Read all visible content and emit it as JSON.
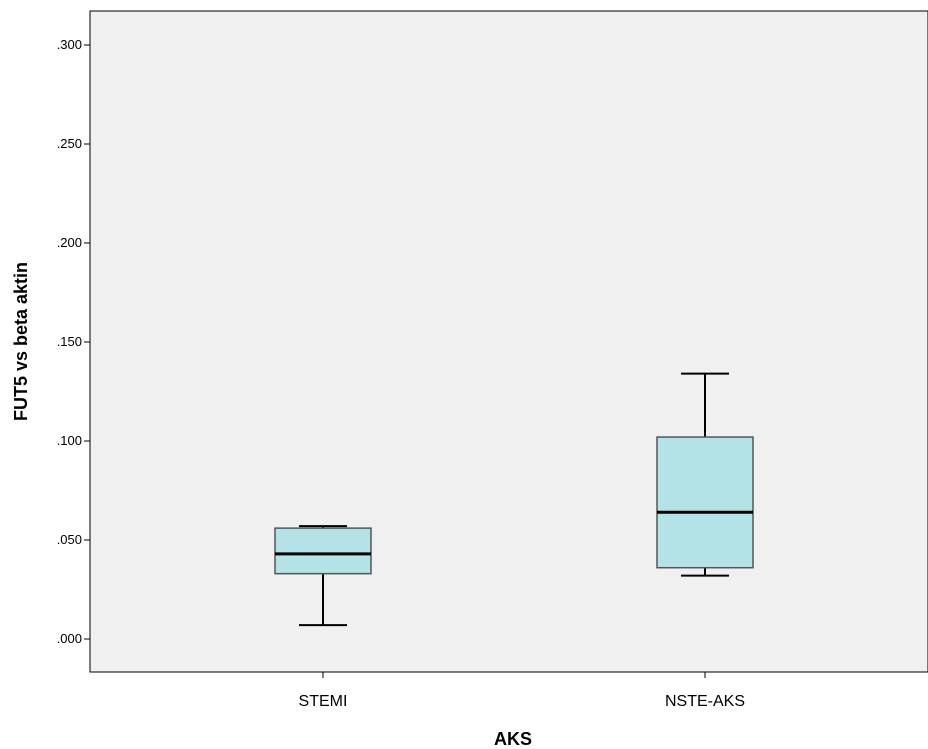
{
  "chart_data": {
    "type": "boxplot",
    "xlabel": "AKS",
    "ylabel": "FUT5 vs beta aktin",
    "ylim": [
      -0.017,
      0.317
    ],
    "yticks": [
      0.0,
      0.05,
      0.1,
      0.15,
      0.2,
      0.25,
      0.3
    ],
    "ytick_labels": [
      ".000",
      ".050",
      ".100",
      ".150",
      ".200",
      ".250",
      ".300"
    ],
    "categories": [
      "STEMI",
      "NSTE-AKS"
    ],
    "boxes": [
      {
        "category": "STEMI",
        "whisker_low": 0.007,
        "q1": 0.033,
        "median": 0.043,
        "q3": 0.056,
        "whisker_high": 0.057
      },
      {
        "category": "NSTE-AKS",
        "whisker_low": 0.032,
        "q1": 0.036,
        "median": 0.064,
        "q3": 0.102,
        "whisker_high": 0.134
      }
    ],
    "colors": {
      "plot_background": "#f0f0f0",
      "box_fill": "#b3e3e6",
      "axis": "#000000"
    },
    "grid": false
  }
}
